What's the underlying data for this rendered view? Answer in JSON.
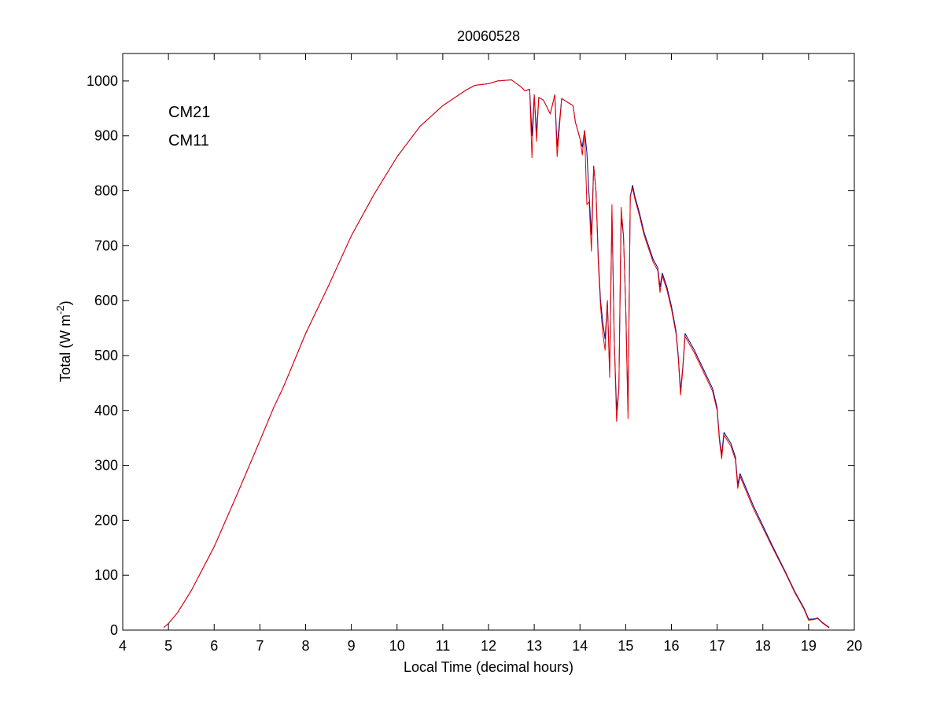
{
  "chart_data": {
    "type": "line",
    "title": "20060528",
    "xlabel": "Local Time (decimal hours)",
    "ylabel": {
      "main": "Total (W m",
      "superscript": "-2",
      "close": ")"
    },
    "xlim": [
      4,
      20
    ],
    "ylim": [
      0,
      1050
    ],
    "xticks": [
      "4",
      "5",
      "6",
      "7",
      "8",
      "9",
      "10",
      "11",
      "12",
      "13",
      "14",
      "15",
      "16",
      "17",
      "18",
      "19",
      "20"
    ],
    "yticks": [
      "0",
      "100",
      "200",
      "300",
      "400",
      "500",
      "600",
      "700",
      "800",
      "900",
      "1000"
    ],
    "grid": false,
    "legend_position": "top-left",
    "series": [
      {
        "name": "CM21",
        "color": "#00008b",
        "points": [
          [
            4.9,
            5
          ],
          [
            5.0,
            12
          ],
          [
            5.2,
            32
          ],
          [
            5.5,
            72
          ],
          [
            6.0,
            152
          ],
          [
            6.5,
            247
          ],
          [
            7.0,
            345
          ],
          [
            7.3,
            405
          ],
          [
            7.5,
            440
          ],
          [
            7.6,
            460
          ],
          [
            7.8,
            500
          ],
          [
            8.0,
            540
          ],
          [
            8.5,
            627
          ],
          [
            9.0,
            718
          ],
          [
            9.5,
            794
          ],
          [
            10.0,
            862
          ],
          [
            10.5,
            917
          ],
          [
            11.0,
            955
          ],
          [
            11.5,
            983
          ],
          [
            11.7,
            992
          ],
          [
            12.0,
            995
          ],
          [
            12.2,
            1000
          ],
          [
            12.5,
            1002
          ],
          [
            12.7,
            990
          ],
          [
            12.8,
            982
          ],
          [
            12.9,
            985
          ],
          [
            12.95,
            900
          ],
          [
            13.0,
            975
          ],
          [
            13.05,
            905
          ],
          [
            13.1,
            970
          ],
          [
            13.2,
            965
          ],
          [
            13.35,
            940
          ],
          [
            13.45,
            975
          ],
          [
            13.5,
            880
          ],
          [
            13.6,
            968
          ],
          [
            13.75,
            960
          ],
          [
            13.85,
            955
          ],
          [
            13.9,
            925
          ],
          [
            14.0,
            895
          ],
          [
            14.05,
            880
          ],
          [
            14.1,
            910
          ],
          [
            14.15,
            870
          ],
          [
            14.2,
            790
          ],
          [
            14.25,
            720
          ],
          [
            14.3,
            845
          ],
          [
            14.35,
            800
          ],
          [
            14.4,
            680
          ],
          [
            14.45,
            600
          ],
          [
            14.5,
            560
          ],
          [
            14.55,
            530
          ],
          [
            14.6,
            600
          ],
          [
            14.65,
            470
          ],
          [
            14.7,
            760
          ],
          [
            14.75,
            530
          ],
          [
            14.8,
            400
          ],
          [
            14.85,
            440
          ],
          [
            14.9,
            750
          ],
          [
            14.95,
            720
          ],
          [
            15.0,
            590
          ],
          [
            15.05,
            400
          ],
          [
            15.1,
            790
          ],
          [
            15.15,
            810
          ],
          [
            15.2,
            790
          ],
          [
            15.3,
            760
          ],
          [
            15.4,
            725
          ],
          [
            15.5,
            700
          ],
          [
            15.6,
            675
          ],
          [
            15.7,
            660
          ],
          [
            15.75,
            625
          ],
          [
            15.8,
            650
          ],
          [
            15.9,
            625
          ],
          [
            16.0,
            590
          ],
          [
            16.1,
            545
          ],
          [
            16.15,
            500
          ],
          [
            16.2,
            435
          ],
          [
            16.25,
            480
          ],
          [
            16.3,
            540
          ],
          [
            16.5,
            510
          ],
          [
            16.7,
            475
          ],
          [
            16.9,
            440
          ],
          [
            17.0,
            405
          ],
          [
            17.05,
            350
          ],
          [
            17.1,
            320
          ],
          [
            17.15,
            360
          ],
          [
            17.3,
            340
          ],
          [
            17.4,
            315
          ],
          [
            17.45,
            265
          ],
          [
            17.5,
            285
          ],
          [
            17.6,
            265
          ],
          [
            17.8,
            225
          ],
          [
            18.0,
            190
          ],
          [
            18.2,
            155
          ],
          [
            18.5,
            105
          ],
          [
            18.7,
            70
          ],
          [
            18.9,
            40
          ],
          [
            19.0,
            20
          ],
          [
            19.1,
            20
          ],
          [
            19.2,
            22
          ],
          [
            19.3,
            14
          ],
          [
            19.45,
            5
          ]
        ]
      },
      {
        "name": "CM11",
        "color": "#ee0000",
        "points": [
          [
            4.9,
            5
          ],
          [
            5.0,
            12
          ],
          [
            5.2,
            32
          ],
          [
            5.5,
            72
          ],
          [
            6.0,
            152
          ],
          [
            6.5,
            247
          ],
          [
            7.0,
            345
          ],
          [
            7.3,
            405
          ],
          [
            7.5,
            440
          ],
          [
            7.6,
            460
          ],
          [
            7.8,
            500
          ],
          [
            8.0,
            540
          ],
          [
            8.5,
            627
          ],
          [
            9.0,
            718
          ],
          [
            9.5,
            794
          ],
          [
            10.0,
            862
          ],
          [
            10.5,
            917
          ],
          [
            11.0,
            955
          ],
          [
            11.5,
            983
          ],
          [
            11.7,
            992
          ],
          [
            12.0,
            995
          ],
          [
            12.2,
            1000
          ],
          [
            12.5,
            1002
          ],
          [
            12.7,
            990
          ],
          [
            12.8,
            982
          ],
          [
            12.9,
            985
          ],
          [
            12.95,
            860
          ],
          [
            13.0,
            975
          ],
          [
            13.05,
            890
          ],
          [
            13.1,
            970
          ],
          [
            13.2,
            965
          ],
          [
            13.35,
            940
          ],
          [
            13.45,
            975
          ],
          [
            13.5,
            862
          ],
          [
            13.6,
            968
          ],
          [
            13.75,
            960
          ],
          [
            13.85,
            955
          ],
          [
            13.9,
            925
          ],
          [
            14.0,
            895
          ],
          [
            14.05,
            865
          ],
          [
            14.1,
            910
          ],
          [
            14.15,
            775
          ],
          [
            14.2,
            780
          ],
          [
            14.25,
            690
          ],
          [
            14.3,
            845
          ],
          [
            14.35,
            800
          ],
          [
            14.4,
            670
          ],
          [
            14.45,
            590
          ],
          [
            14.5,
            540
          ],
          [
            14.55,
            510
          ],
          [
            14.6,
            600
          ],
          [
            14.65,
            460
          ],
          [
            14.7,
            775
          ],
          [
            14.75,
            530
          ],
          [
            14.8,
            380
          ],
          [
            14.85,
            440
          ],
          [
            14.9,
            770
          ],
          [
            14.95,
            720
          ],
          [
            15.0,
            590
          ],
          [
            15.05,
            385
          ],
          [
            15.1,
            790
          ],
          [
            15.15,
            805
          ],
          [
            15.2,
            785
          ],
          [
            15.3,
            755
          ],
          [
            15.4,
            720
          ],
          [
            15.5,
            695
          ],
          [
            15.6,
            670
          ],
          [
            15.7,
            655
          ],
          [
            15.75,
            615
          ],
          [
            15.8,
            645
          ],
          [
            15.9,
            620
          ],
          [
            16.0,
            585
          ],
          [
            16.1,
            540
          ],
          [
            16.15,
            495
          ],
          [
            16.2,
            428
          ],
          [
            16.25,
            475
          ],
          [
            16.3,
            535
          ],
          [
            16.5,
            505
          ],
          [
            16.7,
            470
          ],
          [
            16.9,
            435
          ],
          [
            17.0,
            400
          ],
          [
            17.05,
            345
          ],
          [
            17.1,
            312
          ],
          [
            17.15,
            355
          ],
          [
            17.3,
            335
          ],
          [
            17.4,
            310
          ],
          [
            17.45,
            258
          ],
          [
            17.5,
            280
          ],
          [
            17.6,
            260
          ],
          [
            17.8,
            220
          ],
          [
            18.0,
            186
          ],
          [
            18.2,
            152
          ],
          [
            18.5,
            103
          ],
          [
            18.7,
            68
          ],
          [
            18.9,
            38
          ],
          [
            19.0,
            18
          ],
          [
            19.1,
            19
          ],
          [
            19.2,
            21
          ],
          [
            19.3,
            13
          ],
          [
            19.45,
            4
          ]
        ]
      }
    ]
  }
}
